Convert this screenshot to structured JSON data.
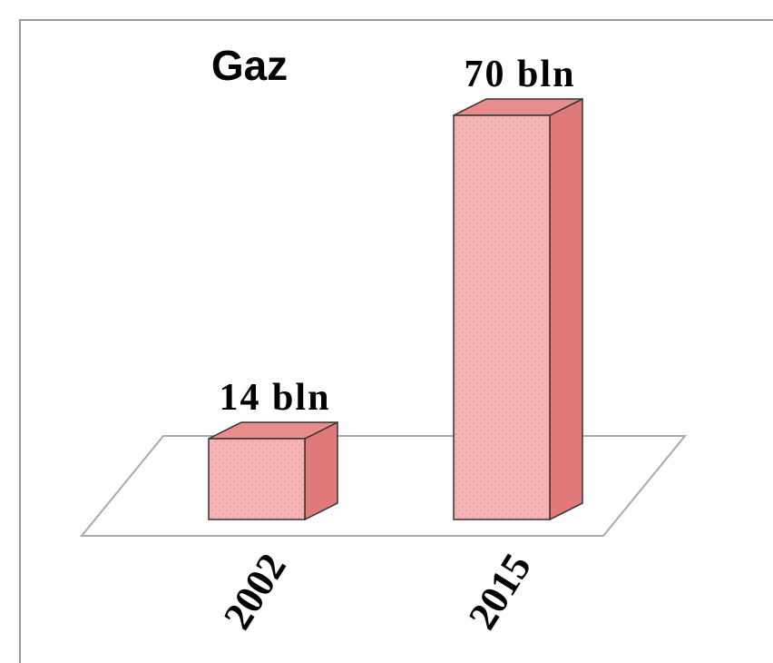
{
  "chart_data": {
    "type": "bar3d",
    "title": "Gaz",
    "categories": [
      "2002",
      "2015"
    ],
    "values": [
      14,
      70
    ],
    "value_labels": [
      "14 bln",
      "70 bln"
    ],
    "color": "#f4b4b4"
  }
}
